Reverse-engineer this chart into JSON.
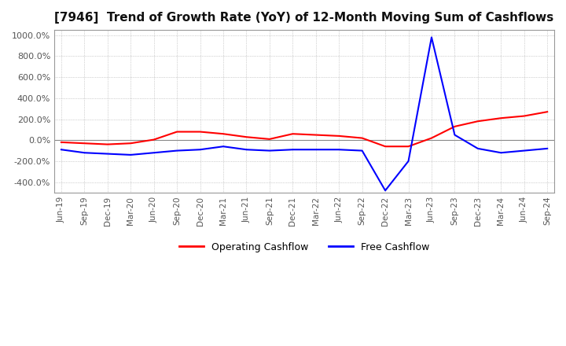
{
  "title": "[7946]  Trend of Growth Rate (YoY) of 12-Month Moving Sum of Cashflows",
  "title_fontsize": 11,
  "ylim": [
    -500,
    1050
  ],
  "yticks": [
    -400,
    -200,
    0,
    200,
    400,
    600,
    800,
    1000
  ],
  "legend_labels": [
    "Operating Cashflow",
    "Free Cashflow"
  ],
  "line_colors": [
    "#ff0000",
    "#0000ff"
  ],
  "background_color": "#ffffff",
  "plot_background": "#ffffff",
  "dates": [
    "Jun-19",
    "Sep-19",
    "Dec-19",
    "Mar-20",
    "Jun-20",
    "Sep-20",
    "Dec-20",
    "Mar-21",
    "Jun-21",
    "Sep-21",
    "Dec-21",
    "Mar-22",
    "Jun-22",
    "Sep-22",
    "Dec-22",
    "Mar-23",
    "Jun-23",
    "Sep-23",
    "Dec-23",
    "Mar-24",
    "Jun-24",
    "Sep-24"
  ],
  "operating_cashflow": [
    -20,
    -30,
    -40,
    -30,
    5,
    80,
    80,
    60,
    30,
    10,
    60,
    50,
    40,
    20,
    -60,
    -60,
    20,
    130,
    180,
    210,
    230,
    270
  ],
  "free_cashflow": [
    -90,
    -120,
    -130,
    -140,
    -120,
    -100,
    -90,
    -60,
    -90,
    -100,
    -90,
    -90,
    -90,
    -100,
    -480,
    -200,
    980,
    50,
    -80,
    -120,
    -100,
    -80
  ]
}
